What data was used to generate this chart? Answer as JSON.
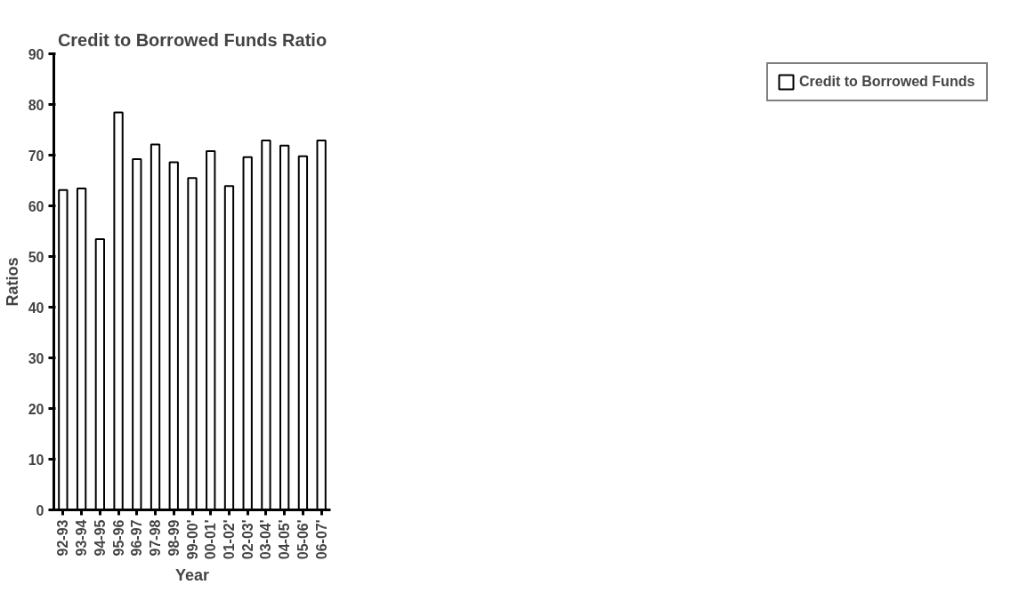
{
  "chart_data": {
    "type": "bar",
    "title": "Credit to Borrowed Funds Ratio",
    "xlabel": "Year",
    "ylabel": "Ratios",
    "categories": [
      "92-93",
      "93-94",
      "94-95",
      "95-96",
      "96-97",
      "97-98",
      "98-99",
      "99-00'",
      "00-01'",
      "01-02'",
      "02-03'",
      "03-04'",
      "04-05'",
      "05-06'",
      "06-07'"
    ],
    "series": [
      {
        "name": "Credit to Borrowed Funds",
        "color": "#ffffff",
        "values": [
          63.1,
          63.4,
          53.4,
          78.4,
          69.2,
          72.1,
          68.6,
          65.5,
          70.8,
          63.9,
          69.6,
          72.9,
          71.9,
          69.8,
          72.9
        ]
      }
    ],
    "ylim": [
      0,
      90
    ],
    "yticks": [
      0,
      10,
      20,
      30,
      40,
      50,
      60,
      70,
      80,
      90
    ],
    "grid": false,
    "legend": "right"
  }
}
